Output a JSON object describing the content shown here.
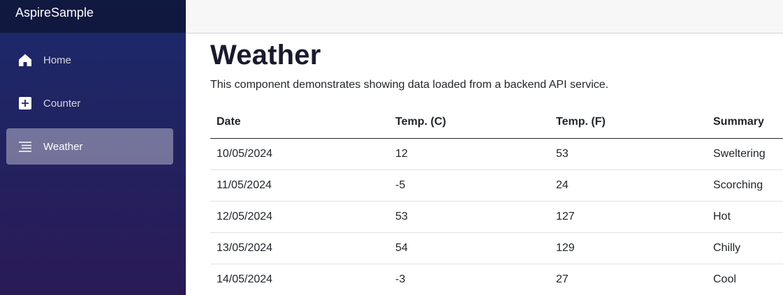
{
  "app": {
    "brand": "AspireSample"
  },
  "sidebar": {
    "items": [
      {
        "label": "Home",
        "icon": "home-icon",
        "active": false
      },
      {
        "label": "Counter",
        "icon": "plus-square-icon",
        "active": false
      },
      {
        "label": "Weather",
        "icon": "list-icon",
        "active": true
      }
    ]
  },
  "page": {
    "title": "Weather",
    "description": "This component demonstrates showing data loaded from a backend API service."
  },
  "table": {
    "headers": [
      "Date",
      "Temp. (C)",
      "Temp. (F)",
      "Summary"
    ],
    "rows": [
      [
        "10/05/2024",
        "12",
        "53",
        "Sweltering"
      ],
      [
        "11/05/2024",
        "-5",
        "24",
        "Scorching"
      ],
      [
        "12/05/2024",
        "53",
        "127",
        "Hot"
      ],
      [
        "13/05/2024",
        "54",
        "129",
        "Chilly"
      ],
      [
        "14/05/2024",
        "-3",
        "27",
        "Cool"
      ]
    ]
  },
  "colors": {
    "sidebar_top": "#1b2a6b",
    "sidebar_bottom": "#2a1a56",
    "active_item": "#6f78a8",
    "topbar": "#f7f7f7"
  }
}
